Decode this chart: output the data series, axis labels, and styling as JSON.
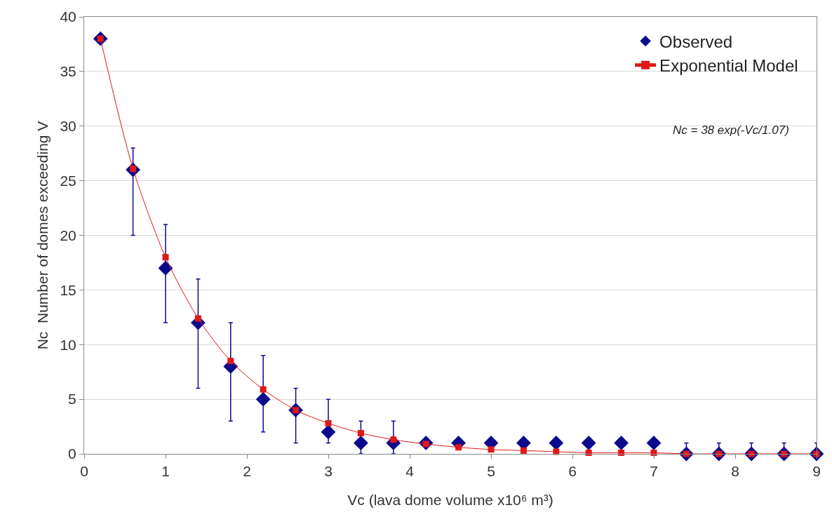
{
  "chart_data": {
    "type": "scatter",
    "xlabel": "Vc (lava dome volume x10⁶ m³)",
    "ylabel": "Nc  Number of domes exceeding V",
    "x": [
      0.2,
      0.6,
      1.0,
      1.4,
      1.8,
      2.2,
      2.6,
      3.0,
      3.4,
      3.8,
      4.2,
      4.6,
      5.0,
      5.4,
      5.8,
      6.2,
      6.6,
      7.0,
      7.4,
      7.8,
      8.2,
      8.6,
      9.0
    ],
    "series": [
      {
        "name": "Observed",
        "color": "#0a0a8c",
        "marker": "diamond",
        "values": [
          38,
          26,
          17,
          12,
          8,
          5,
          4,
          2,
          1,
          1,
          1,
          1,
          1,
          1,
          1,
          1,
          1,
          1,
          0,
          0,
          0,
          0,
          0
        ],
        "errors": [
          null,
          [
            20,
            28
          ],
          [
            12,
            21
          ],
          [
            6,
            16
          ],
          [
            3,
            12
          ],
          [
            2,
            9
          ],
          [
            1,
            6
          ],
          [
            1,
            5
          ],
          [
            0,
            3
          ],
          [
            0,
            3
          ],
          null,
          null,
          null,
          null,
          null,
          null,
          null,
          null,
          [
            0,
            1
          ],
          [
            0,
            1
          ],
          [
            0,
            1
          ],
          [
            0,
            1
          ],
          [
            0,
            1
          ]
        ]
      },
      {
        "name": "Exponential Model",
        "color": "#e01818",
        "marker": "square",
        "type": "line",
        "values": [
          38,
          26.1,
          18.0,
          12.4,
          8.5,
          5.9,
          4.0,
          2.8,
          1.9,
          1.3,
          0.9,
          0.6,
          0.4,
          0.3,
          0.2,
          0.1,
          0.1,
          0.1,
          0,
          0,
          0,
          0,
          0
        ]
      }
    ],
    "annotations": [
      "Nc = 38 exp(-Vc/1.07)"
    ],
    "xlim": [
      0,
      9
    ],
    "xticks": [
      0,
      1,
      2,
      3,
      4,
      5,
      6,
      7,
      8,
      9
    ],
    "ylim": [
      0,
      40
    ],
    "yticks": [
      0,
      5,
      10,
      15,
      20,
      25,
      30,
      35,
      40
    ],
    "grid": "y",
    "legend": "top right"
  }
}
